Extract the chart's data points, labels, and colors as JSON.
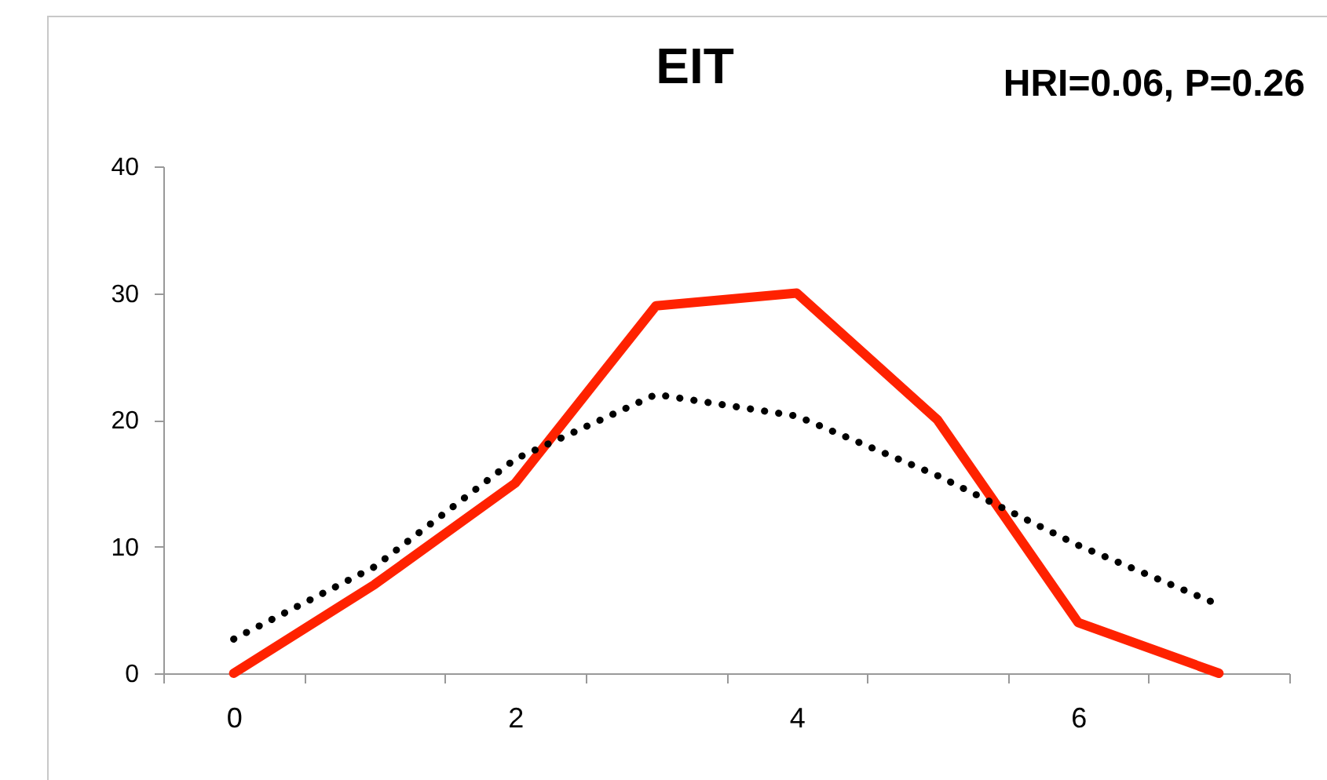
{
  "chart_data": {
    "type": "line",
    "title": "EIT",
    "annotations": [
      "HRI=0.06, P=0.26"
    ],
    "categories": [
      "0",
      null,
      "2",
      null,
      "4",
      null,
      "6",
      null
    ],
    "series": [
      {
        "color": "#ff2200",
        "line_style": "solid",
        "values": [
          0,
          7,
          15,
          29,
          30,
          20,
          4,
          0
        ]
      },
      {
        "color": "#000000",
        "line_style": "dotted",
        "values": [
          2.7,
          8.4,
          16.9,
          22,
          20.3,
          15.6,
          10.1,
          5.4
        ]
      }
    ],
    "ylim": [
      0,
      40
    ],
    "yticks": [
      0,
      10,
      20,
      30,
      40
    ],
    "grid": false,
    "marker": "none"
  }
}
